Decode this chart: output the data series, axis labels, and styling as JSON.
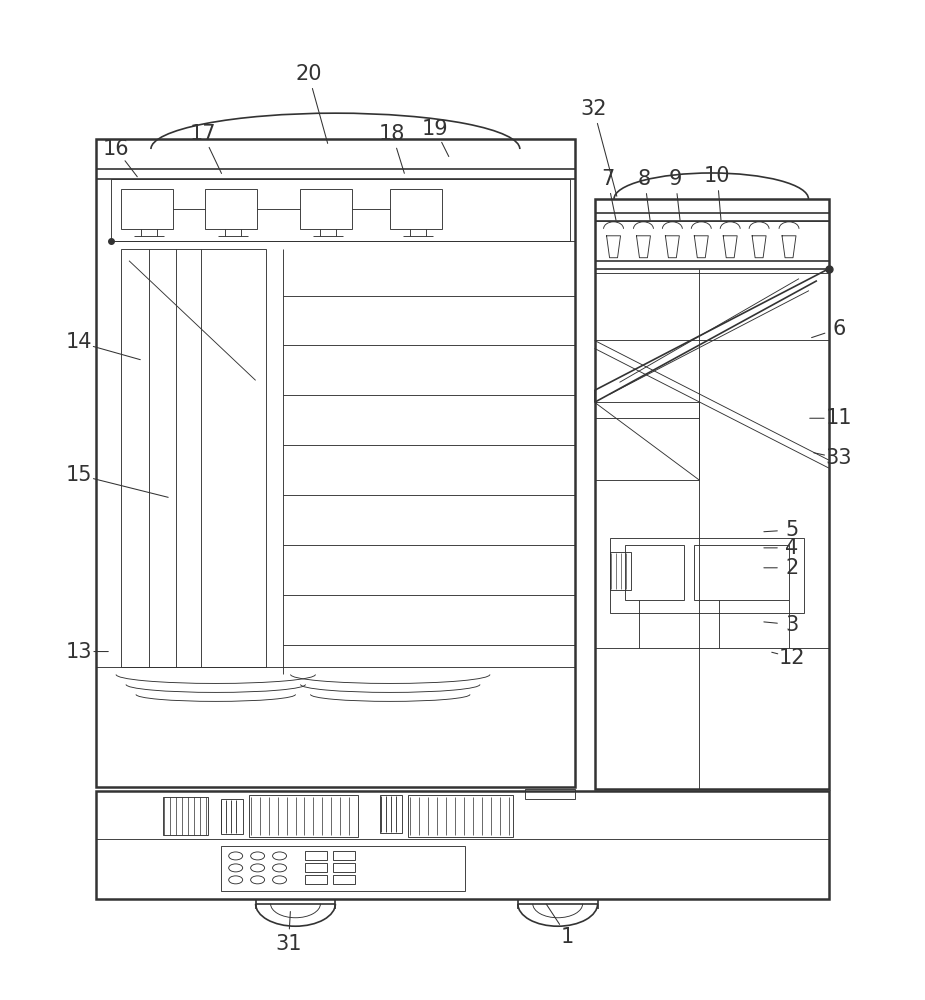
{
  "bg_color": "#ffffff",
  "line_color": "#333333",
  "lw_thick": 1.8,
  "lw_main": 1.2,
  "lw_thin": 0.65,
  "label_fontsize": 15,
  "label_positions": {
    "1": [
      568,
      938,
      545,
      903
    ],
    "2": [
      793,
      568,
      762,
      568
    ],
    "3": [
      793,
      625,
      762,
      622
    ],
    "4": [
      793,
      548,
      762,
      548
    ],
    "5": [
      793,
      530,
      762,
      532
    ],
    "6": [
      840,
      328,
      810,
      338
    ],
    "7": [
      608,
      178,
      617,
      222
    ],
    "8": [
      645,
      178,
      651,
      222
    ],
    "9": [
      676,
      178,
      681,
      222
    ],
    "10": [
      718,
      175,
      722,
      222
    ],
    "11": [
      840,
      418,
      808,
      418
    ],
    "12": [
      793,
      658,
      770,
      652
    ],
    "13": [
      78,
      652,
      110,
      652
    ],
    "14": [
      78,
      342,
      142,
      360
    ],
    "15": [
      78,
      475,
      170,
      498
    ],
    "16": [
      115,
      148,
      138,
      178
    ],
    "17": [
      202,
      133,
      222,
      175
    ],
    "18": [
      392,
      133,
      405,
      175
    ],
    "19": [
      435,
      128,
      450,
      158
    ],
    "20": [
      308,
      73,
      328,
      145
    ],
    "31": [
      288,
      945,
      290,
      910
    ],
    "32": [
      594,
      108,
      618,
      198
    ],
    "33": [
      840,
      458,
      812,
      452
    ]
  }
}
